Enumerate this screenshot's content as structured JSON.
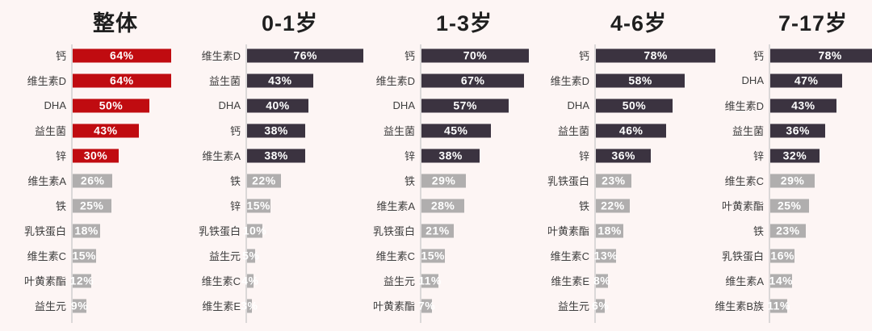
{
  "page": {
    "background": "#fdf5f4",
    "description_labels": {
      "percent_suffix": "%"
    }
  },
  "colors": {
    "overall_highlight": "#c00b10",
    "age_group_highlight": "#3b3340",
    "muted_bar": "#b0aeae",
    "axis_line": "#dbd8d8",
    "category_label": "#3e3e3e",
    "title_text": "#1f1f1f",
    "value_text": "#ffffff"
  },
  "chart_data": [
    {
      "type": "bar",
      "orientation": "horizontal",
      "title": "整体",
      "xlim": [
        0,
        100
      ],
      "grid": false,
      "legend": false,
      "highlight_count": 5,
      "highlight_color": "#c00b10",
      "muted_color": "#b0aeae",
      "categories": [
        "钙",
        "维生素D",
        "DHA",
        "益生菌",
        "锌",
        "维生素A",
        "铁",
        "乳铁蛋白",
        "维生素C",
        "叶黄素酯",
        "益生元"
      ],
      "values": [
        64,
        64,
        50,
        43,
        30,
        26,
        25,
        18,
        15,
        12,
        9
      ],
      "value_labels": [
        "64%",
        "64%",
        "50%",
        "43%",
        "30%",
        "26%",
        "25%",
        "18%",
        "15%",
        "12%",
        "9%"
      ]
    },
    {
      "type": "bar",
      "orientation": "horizontal",
      "title": "0-1岁",
      "xlim": [
        0,
        100
      ],
      "grid": false,
      "legend": false,
      "highlight_count": 5,
      "highlight_color": "#3b3340",
      "muted_color": "#b0aeae",
      "categories": [
        "维生素D",
        "益生菌",
        "DHA",
        "钙",
        "维生素A",
        "铁",
        "锌",
        "乳铁蛋白",
        "益生元",
        "维生素C",
        "维生素E"
      ],
      "values": [
        76,
        43,
        40,
        38,
        38,
        22,
        15,
        10,
        5,
        4,
        3
      ],
      "value_labels": [
        "76%",
        "43%",
        "40%",
        "38%",
        "38%",
        "22%",
        "15%",
        "10%",
        "5%",
        "4%",
        "3%"
      ]
    },
    {
      "type": "bar",
      "orientation": "horizontal",
      "title": "1-3岁",
      "xlim": [
        0,
        100
      ],
      "grid": false,
      "legend": false,
      "highlight_count": 5,
      "highlight_color": "#3b3340",
      "muted_color": "#b0aeae",
      "categories": [
        "钙",
        "维生素D",
        "DHA",
        "益生菌",
        "锌",
        "铁",
        "维生素A",
        "乳铁蛋白",
        "维生素C",
        "益生元",
        "叶黄素酯"
      ],
      "values": [
        70,
        67,
        57,
        45,
        38,
        29,
        28,
        21,
        15,
        11,
        7
      ],
      "value_labels": [
        "70%",
        "67%",
        "57%",
        "45%",
        "38%",
        "29%",
        "28%",
        "21%",
        "15%",
        "11%",
        "7%"
      ]
    },
    {
      "type": "bar",
      "orientation": "horizontal",
      "title": "4-6岁",
      "xlim": [
        0,
        100
      ],
      "grid": false,
      "legend": false,
      "highlight_count": 5,
      "highlight_color": "#3b3340",
      "muted_color": "#b0aeae",
      "categories": [
        "钙",
        "维生素D",
        "DHA",
        "益生菌",
        "锌",
        "乳铁蛋白",
        "铁",
        "叶黄素酯",
        "维生素C",
        "维生素E",
        "益生元"
      ],
      "values": [
        78,
        58,
        50,
        46,
        36,
        23,
        22,
        18,
        13,
        8,
        6
      ],
      "value_labels": [
        "78%",
        "58%",
        "50%",
        "46%",
        "36%",
        "23%",
        "22%",
        "18%",
        "13%",
        "8%",
        "6%"
      ]
    },
    {
      "type": "bar",
      "orientation": "horizontal",
      "title": "7-17岁",
      "xlim": [
        0,
        100
      ],
      "grid": false,
      "legend": false,
      "highlight_count": 5,
      "highlight_color": "#3b3340",
      "muted_color": "#b0aeae",
      "categories": [
        "钙",
        "DHA",
        "维生素D",
        "益生菌",
        "锌",
        "维生素C",
        "叶黄素酯",
        "铁",
        "乳铁蛋白",
        "维生素A",
        "维生素B族"
      ],
      "values": [
        78,
        47,
        43,
        36,
        32,
        29,
        25,
        23,
        16,
        14,
        11
      ],
      "value_labels": [
        "78%",
        "47%",
        "43%",
        "36%",
        "32%",
        "29%",
        "25%",
        "23%",
        "16%",
        "14%",
        "11%"
      ]
    }
  ]
}
